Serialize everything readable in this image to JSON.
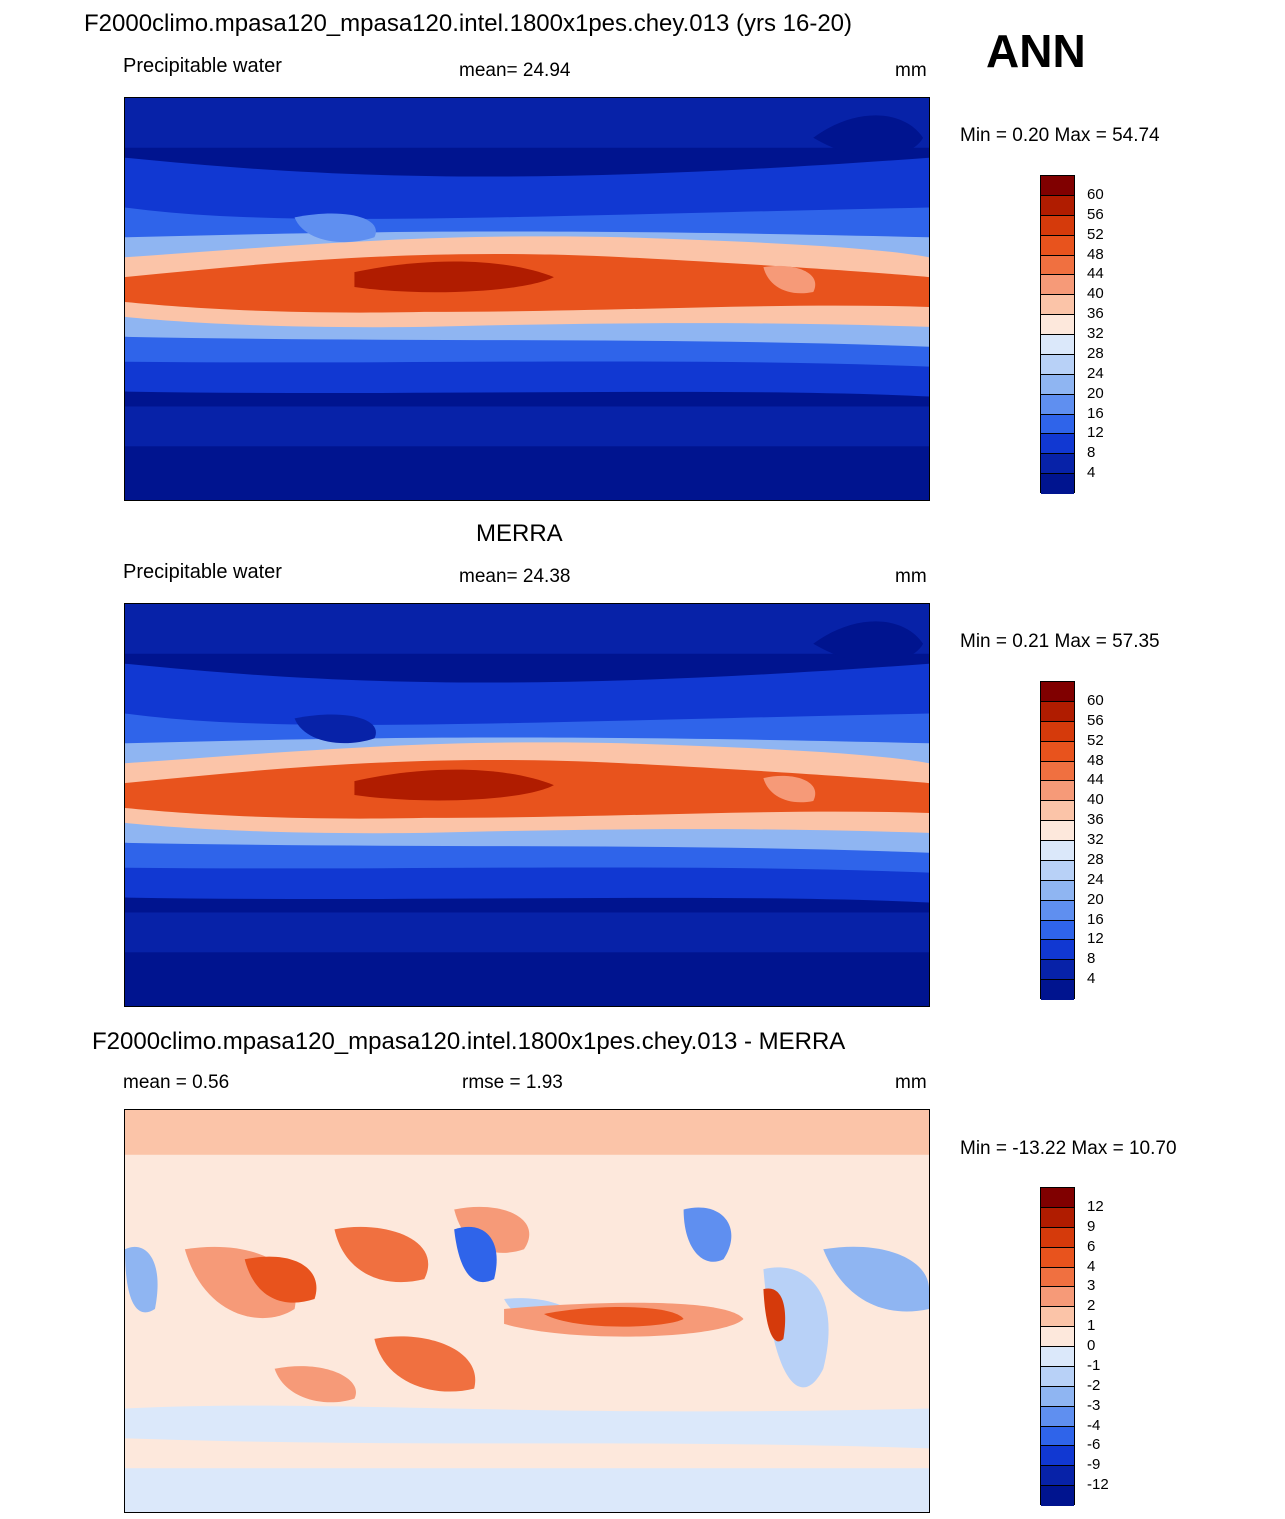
{
  "season": "ANN",
  "panels": [
    {
      "title": "F2000climo.mpasa120_mpasa120.intel.1800x1pes.chey.013 (yrs 16-20)",
      "left_label": "Precipitable water",
      "center_label": "mean=  24.94",
      "right_label": "mm",
      "minmax": "Min =   0.20 Max =  54.74",
      "colorbar": {
        "labels": [
          "60",
          "56",
          "52",
          "48",
          "44",
          "40",
          "36",
          "32",
          "28",
          "24",
          "20",
          "16",
          "12",
          "8",
          "4"
        ],
        "colors": [
          "#800000",
          "#b01c00",
          "#d53a0b",
          "#e8531d",
          "#f07040",
          "#f69a78",
          "#fbc4a8",
          "#fde8dc",
          "#dbe8fa",
          "#b8d1f7",
          "#8fb5f2",
          "#5f8ff0",
          "#2f64ea",
          "#1138d2",
          "#0722a8",
          "#00148f"
        ]
      }
    },
    {
      "title": "MERRA",
      "left_label": "Precipitable water",
      "center_label": "mean=  24.38",
      "right_label": "mm",
      "minmax": "Min =   0.21 Max =  57.35",
      "colorbar": {
        "labels": [
          "60",
          "56",
          "52",
          "48",
          "44",
          "40",
          "36",
          "32",
          "28",
          "24",
          "20",
          "16",
          "12",
          "8",
          "4"
        ],
        "colors": [
          "#800000",
          "#b01c00",
          "#d53a0b",
          "#e8531d",
          "#f07040",
          "#f69a78",
          "#fbc4a8",
          "#fde8dc",
          "#dbe8fa",
          "#b8d1f7",
          "#8fb5f2",
          "#5f8ff0",
          "#2f64ea",
          "#1138d2",
          "#0722a8",
          "#00148f"
        ]
      }
    },
    {
      "title": "F2000climo.mpasa120_mpasa120.intel.1800x1pes.chey.013 - MERRA",
      "left_label": "mean =   0.56",
      "center_label": "rmse =   1.93",
      "right_label": "mm",
      "minmax": "Min = -13.22 Max =  10.70",
      "colorbar": {
        "labels": [
          "12",
          "9",
          "6",
          "4",
          "3",
          "2",
          "1",
          "0",
          "-1",
          "-2",
          "-3",
          "-4",
          "-6",
          "-9",
          "-12"
        ],
        "colors": [
          "#800000",
          "#b01c00",
          "#d53a0b",
          "#e8531d",
          "#f07040",
          "#f69a78",
          "#fbc4a8",
          "#fde8dc",
          "#dbe8fa",
          "#b8d1f7",
          "#8fb5f2",
          "#5f8ff0",
          "#2f64ea",
          "#1138d2",
          "#0722a8",
          "#00148f"
        ]
      }
    }
  ]
}
